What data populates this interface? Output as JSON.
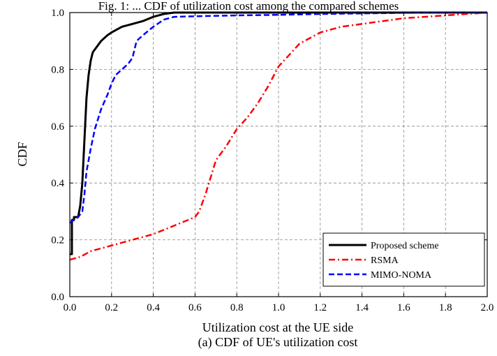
{
  "header_fragment": "Fig. 1: ... CDF of utilization cost among the compared schemes",
  "chart_data": {
    "type": "line",
    "title": "",
    "xlabel": "Utilization cost at the UE side",
    "ylabel": "CDF",
    "caption": "(a) CDF of UE's utilization cost",
    "xlim": [
      0,
      2.0
    ],
    "ylim": [
      0,
      1.0
    ],
    "x_ticks": [
      "0.0",
      "0.2",
      "0.4",
      "0.6",
      "0.8",
      "1.0",
      "1.2",
      "1.4",
      "1.6",
      "1.8",
      "2.0"
    ],
    "y_ticks": [
      "0.0",
      "0.2",
      "0.4",
      "0.6",
      "0.8",
      "1.0"
    ],
    "grid": true,
    "legend_position": "bottom-right",
    "series": [
      {
        "name": "Proposed scheme",
        "color": "#000000",
        "dash": "solid",
        "x": [
          0.0,
          0.01,
          0.01,
          0.02,
          0.02,
          0.04,
          0.05,
          0.06,
          0.07,
          0.08,
          0.09,
          0.1,
          0.11,
          0.12,
          0.15,
          0.18,
          0.2,
          0.25,
          0.3,
          0.35,
          0.4,
          0.45,
          0.5,
          0.6,
          1.0,
          2.0
        ],
        "y": [
          0.15,
          0.15,
          0.27,
          0.27,
          0.28,
          0.28,
          0.32,
          0.4,
          0.55,
          0.7,
          0.78,
          0.83,
          0.86,
          0.87,
          0.9,
          0.92,
          0.93,
          0.95,
          0.96,
          0.97,
          0.985,
          0.995,
          1.0,
          1.0,
          1.0,
          1.0
        ]
      },
      {
        "name": "RSMA",
        "color": "#ff0000",
        "dash": "dashdot",
        "x": [
          0.0,
          0.05,
          0.1,
          0.2,
          0.3,
          0.4,
          0.5,
          0.6,
          0.62,
          0.65,
          0.7,
          0.75,
          0.8,
          0.85,
          0.9,
          0.95,
          1.0,
          1.05,
          1.1,
          1.15,
          1.2,
          1.3,
          1.4,
          1.5,
          1.6,
          1.7,
          1.8,
          1.9,
          2.0
        ],
        "y": [
          0.13,
          0.14,
          0.16,
          0.18,
          0.2,
          0.22,
          0.25,
          0.28,
          0.3,
          0.36,
          0.48,
          0.53,
          0.59,
          0.63,
          0.68,
          0.74,
          0.81,
          0.85,
          0.89,
          0.91,
          0.93,
          0.95,
          0.96,
          0.97,
          0.98,
          0.985,
          0.99,
          0.995,
          1.0
        ]
      },
      {
        "name": "MIMO-NOMA",
        "color": "#0000ff",
        "dash": "dashed",
        "x": [
          0.0,
          0.02,
          0.04,
          0.05,
          0.06,
          0.07,
          0.08,
          0.1,
          0.12,
          0.15,
          0.18,
          0.2,
          0.22,
          0.25,
          0.28,
          0.3,
          0.32,
          0.35,
          0.4,
          0.45,
          0.5,
          0.6,
          0.8,
          1.0,
          1.2,
          1.4,
          1.6,
          1.8,
          2.0
        ],
        "y": [
          0.26,
          0.27,
          0.28,
          0.29,
          0.3,
          0.36,
          0.44,
          0.52,
          0.59,
          0.66,
          0.71,
          0.75,
          0.78,
          0.8,
          0.82,
          0.84,
          0.9,
          0.92,
          0.95,
          0.975,
          0.985,
          0.987,
          0.99,
          0.992,
          0.995,
          0.997,
          0.999,
          1.0,
          1.0
        ]
      }
    ]
  }
}
